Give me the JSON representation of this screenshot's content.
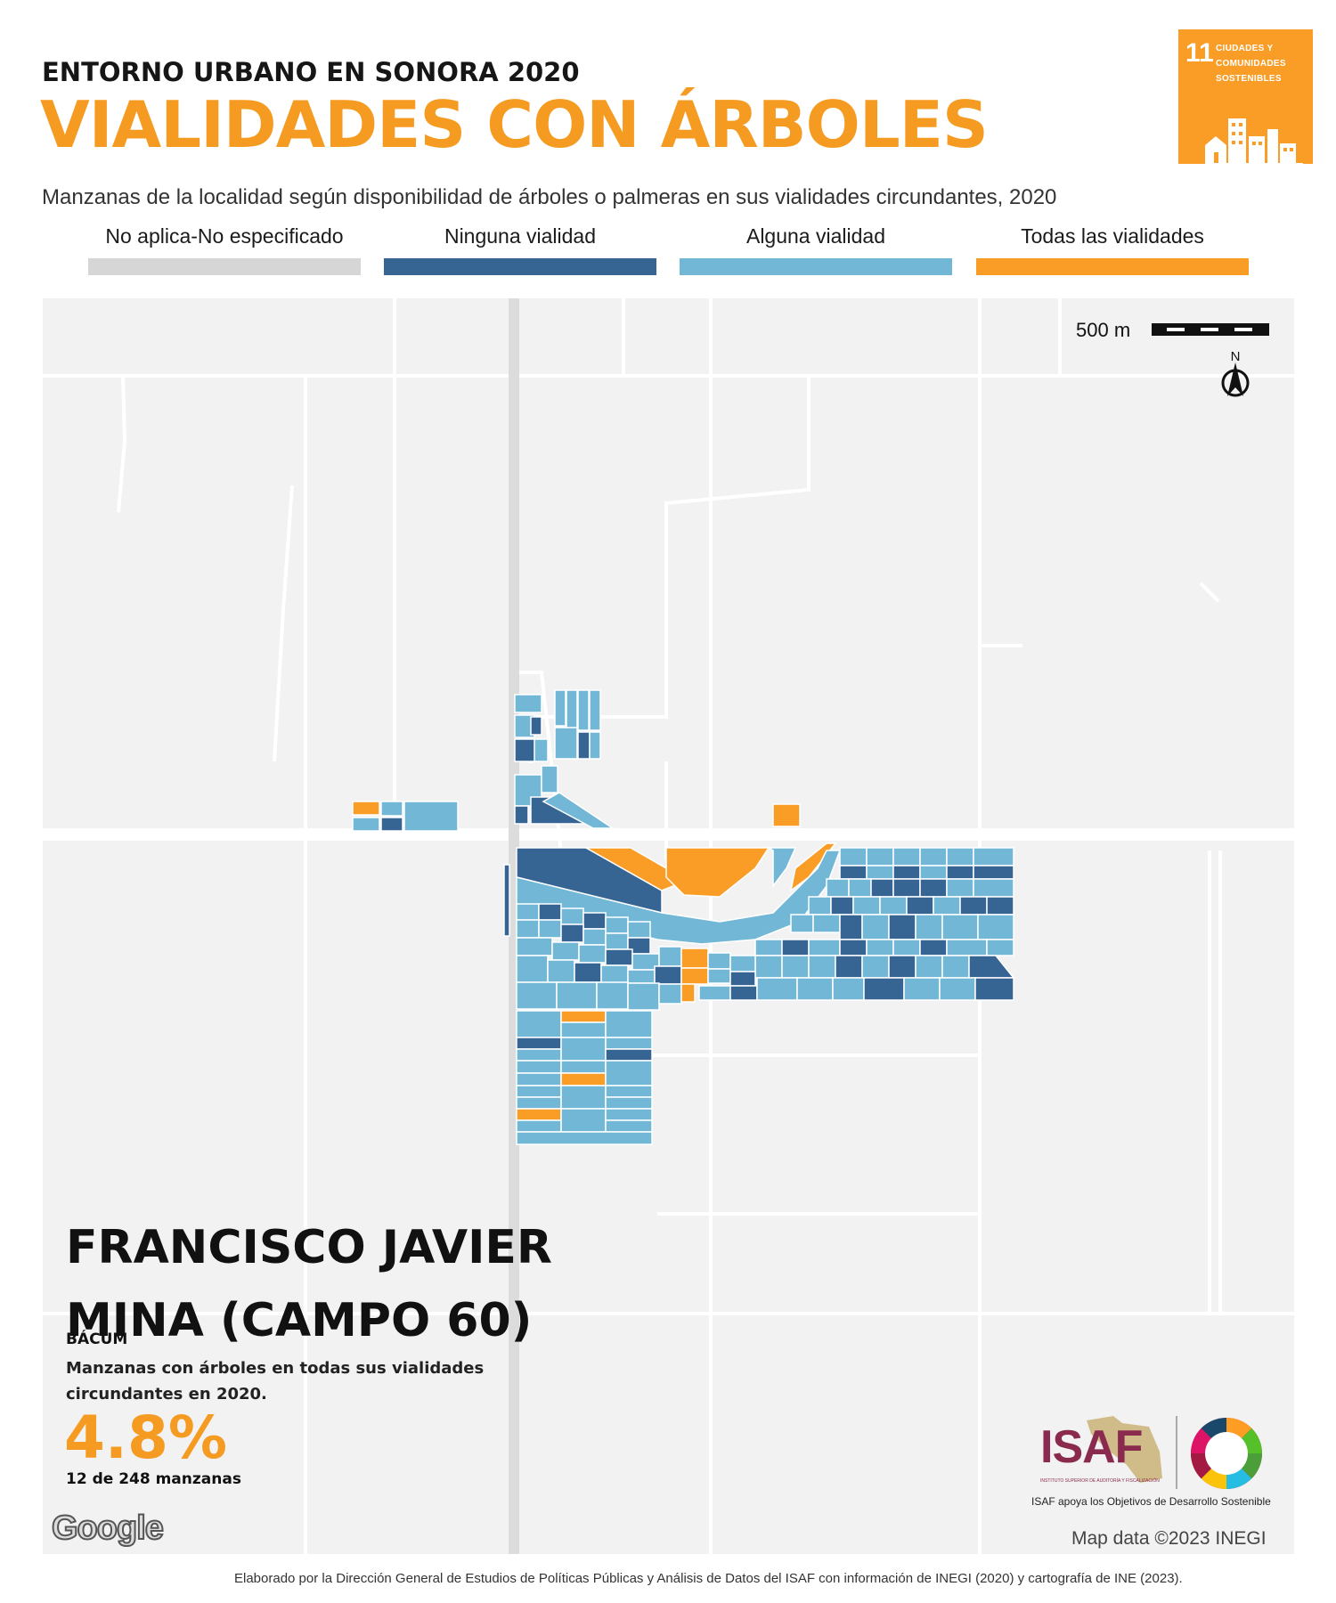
{
  "header": {
    "kicker": "ENTORNO URBANO EN SONORA 2020",
    "title": "VIALIDADES CON ÁRBOLES",
    "subtitle": "Manzanas de la localidad según disponibilidad de árboles o palmeras en sus vialidades circundantes, 2020"
  },
  "legend": [
    {
      "label": "No aplica-No especificado",
      "color": "#d6d6d6"
    },
    {
      "label": "Ninguna vialidad",
      "color": "#376593"
    },
    {
      "label": "Alguna vialidad",
      "color": "#72b8d6"
    },
    {
      "label": "Todas las vialidades",
      "color": "#f99d26"
    }
  ],
  "sdg_badge": {
    "number": "11",
    "text": "CIUDADES Y\nCOMUNIDADES\nSOSTENIBLES",
    "color": "#f99d26"
  },
  "map": {
    "scale_label": "500 m",
    "north_label": "N",
    "attribution": "Map data ©2023 INEGI",
    "provider": "Google"
  },
  "locality": {
    "name": "FRANCISCO JAVIER MINA (CAMPO 60)",
    "municipality": "BÁCUM",
    "stat_description": "Manzanas con árboles en todas sus vialidades circundantes en 2020.",
    "stat_value": "4.8%",
    "stat_count": "12 de 248 manzanas"
  },
  "logos": {
    "isaf": "ISAF",
    "isaf_subtitle": "INSTITUTO SUPERIOR DE AUDITORÍA Y FISCALIZACIÓN",
    "isaf_caption": "ISAF apoya los Objetivos de Desarrollo Sostenible"
  },
  "footer": "Elaborado por la Dirección General de Estudios de Políticas Públicas y Análisis de Datos del ISAF con información de INEGI (2020) y cartografía de INE (2023)."
}
